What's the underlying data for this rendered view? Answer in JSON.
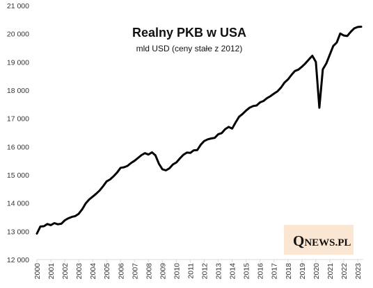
{
  "chart_data": {
    "type": "line",
    "title": "Realny PKB w USA",
    "subtitle": "mld USD (ceny stałe z 2012)",
    "xlabel": "",
    "ylabel": "",
    "ylim": [
      12000,
      20700
    ],
    "xlim": [
      2000,
      2023.4
    ],
    "y_ticks": [
      "12 000",
      "13 000",
      "14 000",
      "15 000",
      "16 000",
      "17 000",
      "18 000",
      "19 000",
      "20 000",
      "21 000"
    ],
    "x_ticks": [
      "2000",
      "2001",
      "2002",
      "2003",
      "2004",
      "2005",
      "2006",
      "2007",
      "2008",
      "2009",
      "2010",
      "2011",
      "2012",
      "2013",
      "2014",
      "2015",
      "2016",
      "2017",
      "2018",
      "2019",
      "2020",
      "2021",
      "2022",
      "2023"
    ],
    "grid": false,
    "legend": "none",
    "line_color": "#000000",
    "series": [
      {
        "x": [
          2000.0,
          2000.25,
          2000.5,
          2000.75,
          2001.0,
          2001.25,
          2001.5,
          2001.75,
          2002.0,
          2002.25,
          2002.5,
          2002.75,
          2003.0,
          2003.25,
          2003.5,
          2003.75,
          2004.0,
          2004.25,
          2004.5,
          2004.75,
          2005.0,
          2005.25,
          2005.5,
          2005.75,
          2006.0,
          2006.25,
          2006.5,
          2006.75,
          2007.0,
          2007.25,
          2007.5,
          2007.75,
          2008.0,
          2008.25,
          2008.5,
          2008.75,
          2009.0,
          2009.25,
          2009.5,
          2009.75,
          2010.0,
          2010.25,
          2010.5,
          2010.75,
          2011.0,
          2011.25,
          2011.5,
          2011.75,
          2012.0,
          2012.25,
          2012.5,
          2012.75,
          2013.0,
          2013.25,
          2013.5,
          2013.75,
          2014.0,
          2014.25,
          2014.5,
          2014.75,
          2015.0,
          2015.25,
          2015.5,
          2015.75,
          2016.0,
          2016.25,
          2016.5,
          2016.75,
          2017.0,
          2017.25,
          2017.5,
          2017.75,
          2018.0,
          2018.25,
          2018.5,
          2018.75,
          2019.0,
          2019.25,
          2019.5,
          2019.75,
          2020.0,
          2020.25,
          2020.5,
          2020.75,
          2021.0,
          2021.25,
          2021.5,
          2021.75,
          2022.0,
          2022.25,
          2022.5,
          2022.75,
          2023.0,
          2023.25
        ],
        "values": [
          12920,
          13170,
          13180,
          13260,
          13220,
          13290,
          13250,
          13270,
          13390,
          13460,
          13510,
          13540,
          13620,
          13780,
          13990,
          14130,
          14230,
          14330,
          14450,
          14600,
          14770,
          14840,
          14950,
          15080,
          15250,
          15270,
          15320,
          15420,
          15500,
          15600,
          15700,
          15770,
          15720,
          15800,
          15690,
          15390,
          15200,
          15160,
          15230,
          15370,
          15440,
          15580,
          15710,
          15790,
          15780,
          15870,
          15880,
          16070,
          16200,
          16260,
          16290,
          16310,
          16440,
          16480,
          16620,
          16700,
          16640,
          16860,
          17060,
          17160,
          17280,
          17380,
          17440,
          17460,
          17570,
          17620,
          17720,
          17790,
          17880,
          17960,
          18090,
          18270,
          18380,
          18540,
          18680,
          18730,
          18830,
          18950,
          19090,
          19220,
          19000,
          17380,
          18740,
          18950,
          19260,
          19570,
          19690,
          20010,
          19940,
          19920,
          20070,
          20190,
          20240,
          20250
        ]
      }
    ]
  },
  "logo": {
    "q": "Q",
    "rest": "NEWS.PL",
    "bg": "#fbe6d3"
  }
}
